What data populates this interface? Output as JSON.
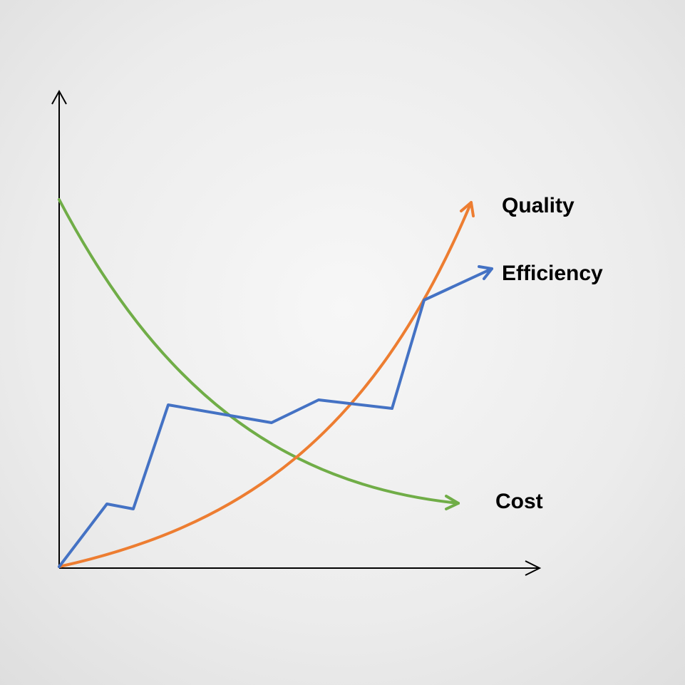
{
  "curves": [
    {
      "label": "Quality"
    },
    {
      "label": "Efficiency"
    },
    {
      "label": "Cost"
    }
  ]
}
